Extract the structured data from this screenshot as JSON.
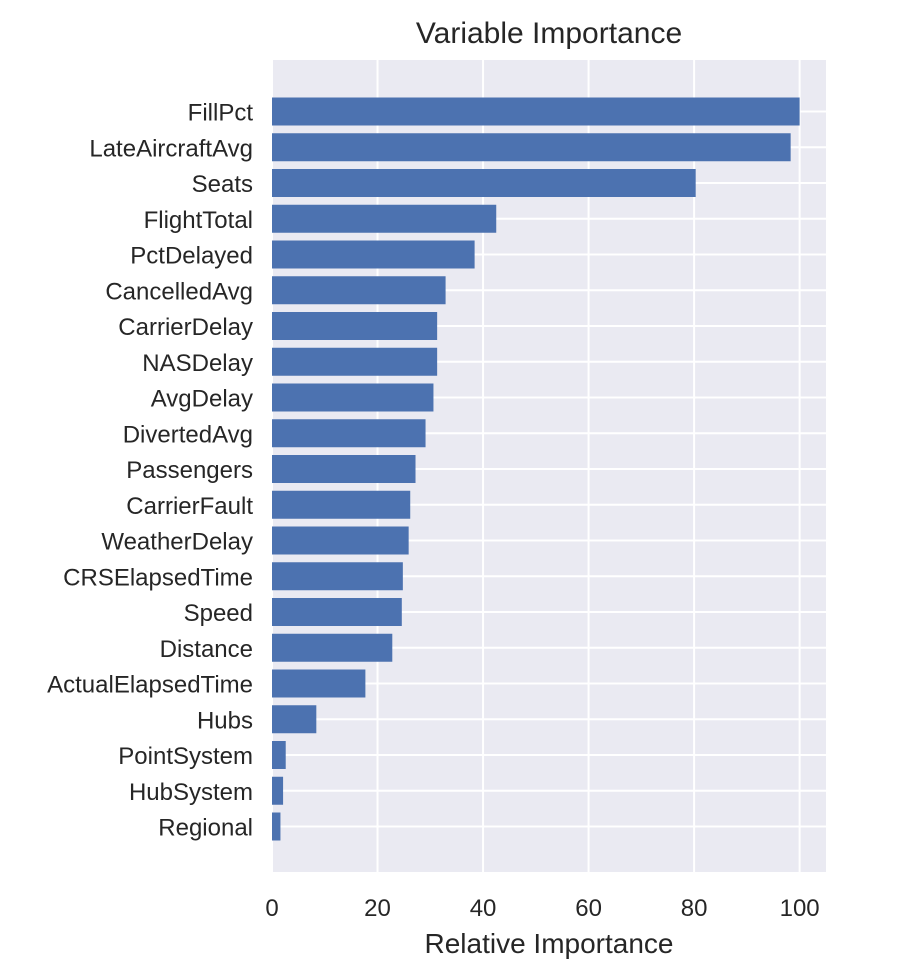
{
  "chart_data": {
    "type": "bar",
    "orientation": "horizontal",
    "title": "Variable Importance",
    "xlabel": "Relative Importance",
    "ylabel": "",
    "xlim": [
      0,
      105
    ],
    "xticks": [
      0,
      20,
      40,
      60,
      80,
      100
    ],
    "grid": true,
    "legend": "none",
    "colors": {
      "bar": "#4c72b0",
      "plot_bg": "#eaeaf2",
      "grid": "#ffffff"
    },
    "categories": [
      "FillPct",
      "LateAircraftAvg",
      "Seats",
      "FlightTotal",
      "PctDelayed",
      "CancelledAvg",
      "CarrierDelay",
      "NASDelay",
      "AvgDelay",
      "DivertedAvg",
      "Passengers",
      "CarrierFault",
      "WeatherDelay",
      "CRSElapsedTime",
      "Speed",
      "Distance",
      "ActualElapsedTime",
      "Hubs",
      "PointSystem",
      "HubSystem",
      "Regional"
    ],
    "values": [
      100,
      98.3,
      80.3,
      42.5,
      38.4,
      32.9,
      31.3,
      31.3,
      30.6,
      29.1,
      27.2,
      26.2,
      25.9,
      24.8,
      24.6,
      22.8,
      17.7,
      8.4,
      2.6,
      2.1,
      1.6
    ]
  }
}
